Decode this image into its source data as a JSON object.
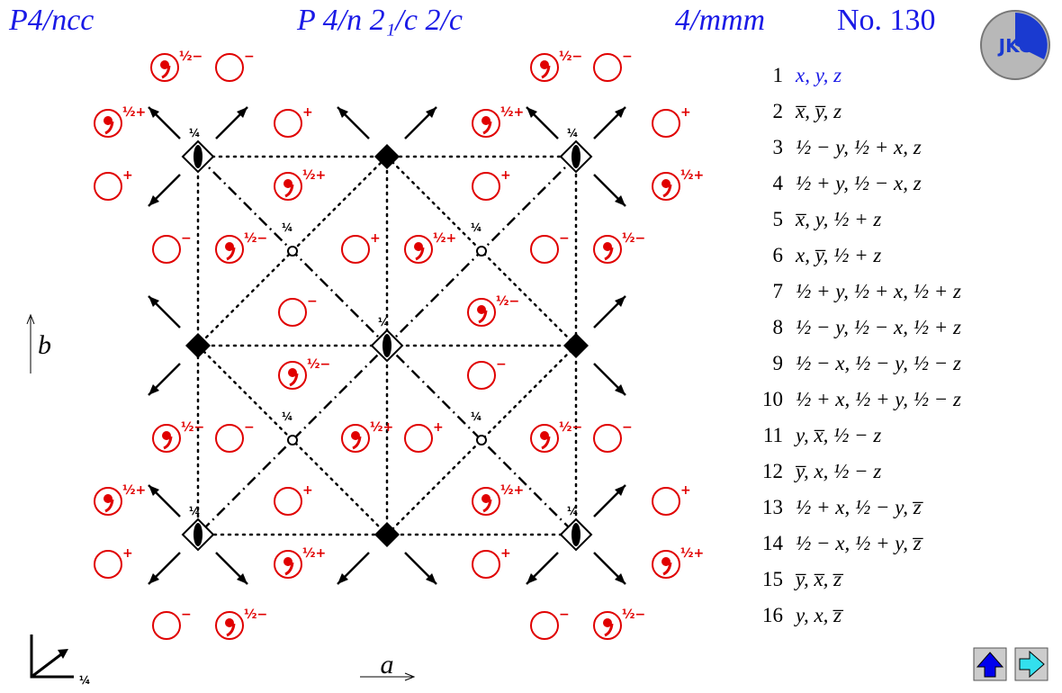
{
  "header": {
    "symbol": "P4/ncc",
    "full_symbol": "P 4/n 2₁/c 2/c",
    "point_group": "4/mmm",
    "number": "No. 130"
  },
  "logo": "JKC",
  "axes": {
    "a": "a",
    "b": "b",
    "height": "¼"
  },
  "height_label": "¼",
  "signs": {
    "plus": "+",
    "minus": "−",
    "half_plus": "½+",
    "half_minus": "½−"
  },
  "positions": [
    {
      "number": "1",
      "coords": "x, y, z"
    },
    {
      "number": "2",
      "coords": "x̅, y̅, z"
    },
    {
      "number": "3",
      "coords": "½ − y, ½ + x, z"
    },
    {
      "number": "4",
      "coords": "½ + y, ½ − x, z"
    },
    {
      "number": "5",
      "coords": "x̅, y, ½ + z"
    },
    {
      "number": "6",
      "coords": "x, y̅, ½ + z"
    },
    {
      "number": "7",
      "coords": "½ + y, ½ + x, ½ + z"
    },
    {
      "number": "8",
      "coords": "½ − y, ½ − x, ½ + z"
    },
    {
      "number": "9",
      "coords": "½ − x, ½ − y, ½ − z"
    },
    {
      "number": "10",
      "coords": "½ + x, ½ + y, ½ − z"
    },
    {
      "number": "11",
      "coords": "y, x̅, ½ − z"
    },
    {
      "number": "12",
      "coords": "y̅, x, ½ − z"
    },
    {
      "number": "13",
      "coords": "½ + x, ½ − y, z̅"
    },
    {
      "number": "14",
      "coords": "½ − x, ½ + y, z̅"
    },
    {
      "number": "15",
      "coords": "y̅, x̅, z̅"
    },
    {
      "number": "16",
      "coords": "y, x, z̅"
    }
  ]
}
